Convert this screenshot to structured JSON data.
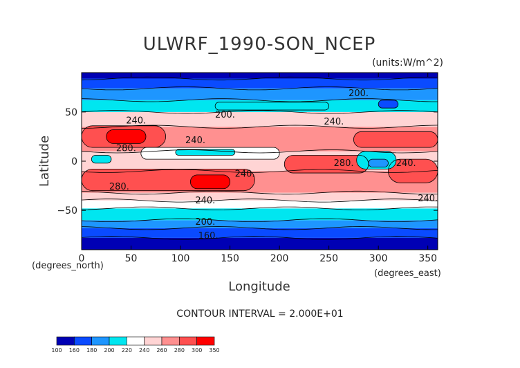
{
  "chart_data": {
    "type": "heatmap",
    "title": "ULWRF_1990-SON_NCEP",
    "units_label": "(units:W/m^2)",
    "xlabel": "Longitude",
    "ylabel": "Latitude",
    "x_unit_label": "(degrees_east)",
    "y_unit_label": "(degrees_north)",
    "xlim": [
      0,
      360
    ],
    "ylim": [
      -90,
      90
    ],
    "x_ticks": [
      0,
      50,
      100,
      150,
      200,
      250,
      300,
      350
    ],
    "y_ticks": [
      -50,
      0,
      50
    ],
    "contour_interval_text": "CONTOUR INTERVAL = 2.000E+01",
    "contour_labels": [
      {
        "text": "200.",
        "lon": 145,
        "lat": 47
      },
      {
        "text": "240.",
        "lon": 55,
        "lat": 41
      },
      {
        "text": "200.",
        "lon": 280,
        "lat": 69
      },
      {
        "text": "240.",
        "lon": 255,
        "lat": 40
      },
      {
        "text": "240.",
        "lon": 115,
        "lat": 21
      },
      {
        "text": "280.",
        "lon": 45,
        "lat": 13
      },
      {
        "text": "280.",
        "lon": 265,
        "lat": -2
      },
      {
        "text": "240.",
        "lon": 328,
        "lat": -2
      },
      {
        "text": "240.",
        "lon": 165,
        "lat": -13
      },
      {
        "text": "280.",
        "lon": 38,
        "lat": -26
      },
      {
        "text": "240.",
        "lon": 125,
        "lat": -40
      },
      {
        "text": "240.",
        "lon": 350,
        "lat": -38
      },
      {
        "text": "200.",
        "lon": 125,
        "lat": -62
      },
      {
        "text": "160.",
        "lon": 128,
        "lat": -76
      }
    ],
    "colorbar": {
      "bounds": [
        "100",
        "160",
        "180",
        "200",
        "220",
        "240",
        "260",
        "280",
        "300",
        "350"
      ],
      "colors": [
        "#0000b4",
        "#0a4bff",
        "#1e96ff",
        "#00e6f0",
        "#ffffff",
        "#ffd4d4",
        "#ff9090",
        "#ff5050",
        "#ff0000"
      ]
    },
    "bands": [
      {
        "lat_min": -90,
        "lat_max": -78,
        "range": "100-160",
        "color": "#0000b4"
      },
      {
        "lat_min": -78,
        "lat_max": -68,
        "range": "160-180",
        "color": "#0a4bff"
      },
      {
        "lat_min": -68,
        "lat_max": -60,
        "range": "180-200",
        "color": "#1e96ff"
      },
      {
        "lat_min": -60,
        "lat_max": -48,
        "range": "200-220",
        "color": "#00e6f0"
      },
      {
        "lat_min": -48,
        "lat_max": -40,
        "range": "220-240",
        "color": "#ffffff"
      },
      {
        "lat_min": -40,
        "lat_max": -32,
        "range": "240-260",
        "color": "#ffd4d4"
      },
      {
        "lat_min": -32,
        "lat_max": -10,
        "range": "260-280",
        "color": "#ff9090"
      },
      {
        "lat_min": -10,
        "lat_max": 10,
        "range": "240-260",
        "color": "#ffd4d4"
      },
      {
        "lat_min": 10,
        "lat_max": 35,
        "range": "260-280",
        "color": "#ff9090"
      },
      {
        "lat_min": 35,
        "lat_max": 50,
        "range": "240-260",
        "color": "#ffd4d4"
      },
      {
        "lat_min": 50,
        "lat_max": 62,
        "range": "200-220",
        "color": "#00e6f0"
      },
      {
        "lat_min": 62,
        "lat_max": 74,
        "range": "180-200",
        "color": "#1e96ff"
      },
      {
        "lat_min": 74,
        "lat_max": 84,
        "range": "160-180",
        "color": "#0a4bff"
      },
      {
        "lat_min": 84,
        "lat_max": 90,
        "range": "100-160",
        "color": "#0000b4"
      }
    ],
    "features": [
      {
        "name": "nh-subtropic-red-west",
        "lon_min": 0,
        "lon_max": 85,
        "lat_min": 14,
        "lat_max": 36,
        "color": "#ff5050"
      },
      {
        "name": "nh-core-africa",
        "lon_min": 25,
        "lon_max": 65,
        "lat_min": 18,
        "lat_max": 32,
        "color": "#ff0000"
      },
      {
        "name": "nh-east-red",
        "lon_min": 275,
        "lon_max": 360,
        "lat_min": 14,
        "lat_max": 30,
        "color": "#ff5050"
      },
      {
        "name": "sh-red-belt-west",
        "lon_min": 0,
        "lon_max": 175,
        "lat_min": -30,
        "lat_max": -8,
        "color": "#ff5050"
      },
      {
        "name": "sh-core-australia",
        "lon_min": 110,
        "lon_max": 150,
        "lat_min": -28,
        "lat_max": -14,
        "color": "#ff0000"
      },
      {
        "name": "pacific-red",
        "lon_min": 205,
        "lon_max": 290,
        "lat_min": -12,
        "lat_max": 6,
        "color": "#ff5050"
      },
      {
        "name": "east-sh-red",
        "lon_min": 310,
        "lon_max": 360,
        "lat_min": -22,
        "lat_max": 2,
        "color": "#ff5050"
      },
      {
        "name": "indo-warmpool-white",
        "lon_min": 60,
        "lon_max": 200,
        "lat_min": 2,
        "lat_max": 14,
        "color": "#ffffff"
      },
      {
        "name": "maritime-cyan",
        "lon_min": 95,
        "lon_max": 155,
        "lat_min": 6,
        "lat_max": 12,
        "color": "#00e6f0"
      },
      {
        "name": "amazon-cyan",
        "lon_min": 278,
        "lon_max": 318,
        "lat_min": -8,
        "lat_max": 10,
        "color": "#00e6f0"
      },
      {
        "name": "amazon-core",
        "lon_min": 290,
        "lon_max": 310,
        "lat_min": -6,
        "lat_max": 2,
        "color": "#1e96ff"
      },
      {
        "name": "africa-cyan",
        "lon_min": 10,
        "lon_max": 30,
        "lat_min": -2,
        "lat_max": 6,
        "color": "#00e6f0"
      },
      {
        "name": "nh-storm-cyan",
        "lon_min": 135,
        "lon_max": 250,
        "lat_min": 52,
        "lat_max": 60,
        "color": "#00e6f0"
      },
      {
        "name": "nh-north-blue-patch",
        "lon_min": 300,
        "lon_max": 320,
        "lat_min": 54,
        "lat_max": 62,
        "color": "#0a4bff"
      }
    ]
  }
}
